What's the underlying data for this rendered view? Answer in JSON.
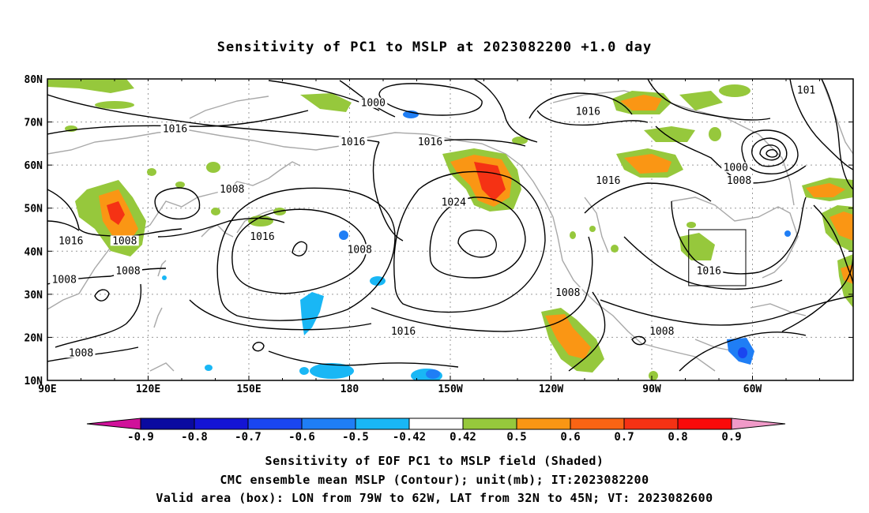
{
  "title": "Sensitivity of PC1 to MSLP at 2023082200 +1.0 day",
  "map": {
    "lon_labels": [
      "90E",
      "120E",
      "150E",
      "180",
      "150W",
      "120W",
      "90W",
      "60W"
    ],
    "lat_labels": [
      "80N",
      "70N",
      "60N",
      "50N",
      "40N",
      "30N",
      "20N",
      "10N"
    ],
    "contour_labels": [
      {
        "text": "1016",
        "lon": 128,
        "lat": 68
      },
      {
        "text": "1016",
        "lon": 181,
        "lat": 65
      },
      {
        "text": "1016",
        "lon": 204,
        "lat": 65
      },
      {
        "text": "1000",
        "lon": 187,
        "lat": 74
      },
      {
        "text": "1016",
        "lon": 251,
        "lat": 72
      },
      {
        "text": "101",
        "lon": 316,
        "lat": 77
      },
      {
        "text": "1008",
        "lon": 145,
        "lat": 54
      },
      {
        "text": "1016",
        "lon": 154,
        "lat": 43
      },
      {
        "text": "1016",
        "lon": 97,
        "lat": 42
      },
      {
        "text": "1008",
        "lon": 113,
        "lat": 42
      },
      {
        "text": "1008",
        "lon": 114,
        "lat": 35
      },
      {
        "text": "1008",
        "lon": 95,
        "lat": 33
      },
      {
        "text": "1008",
        "lon": 100,
        "lat": 16
      },
      {
        "text": "1008",
        "lon": 183,
        "lat": 40
      },
      {
        "text": "1024",
        "lon": 211,
        "lat": 51
      },
      {
        "text": "1016",
        "lon": 257,
        "lat": 56
      },
      {
        "text": "1000",
        "lon": 295,
        "lat": 59
      },
      {
        "text": "1008",
        "lon": 296,
        "lat": 56
      },
      {
        "text": "1016",
        "lon": 196,
        "lat": 21
      },
      {
        "text": "1008",
        "lon": 245,
        "lat": 30
      },
      {
        "text": "1008",
        "lon": 273,
        "lat": 21
      },
      {
        "text": "1016",
        "lon": 287,
        "lat": 35
      }
    ]
  },
  "colorbar": {
    "labels": [
      "-0.9",
      "-0.8",
      "-0.7",
      "-0.6",
      "-0.5",
      "-0.42",
      "0.42",
      "0.5",
      "0.6",
      "0.7",
      "0.8",
      "0.9"
    ],
    "colors": [
      "#d0119a",
      "#0a0aa0",
      "#1414d4",
      "#1a46f0",
      "#1f7ef5",
      "#19b7f5",
      "#ffffff",
      "#96c83c",
      "#fa9614",
      "#fa6414",
      "#f53214",
      "#fa0a0a",
      "#f09ac8"
    ]
  },
  "captions": {
    "line1": "Sensitivity of EOF PC1 to MSLP field (Shaded)",
    "line2": "CMC ensemble mean MSLP (Contour); unit(mb); IT:2023082200",
    "line3": "Valid area (box): LON from 79W to 62W, LAT from 32N to 45N; VT: 2023082600"
  }
}
